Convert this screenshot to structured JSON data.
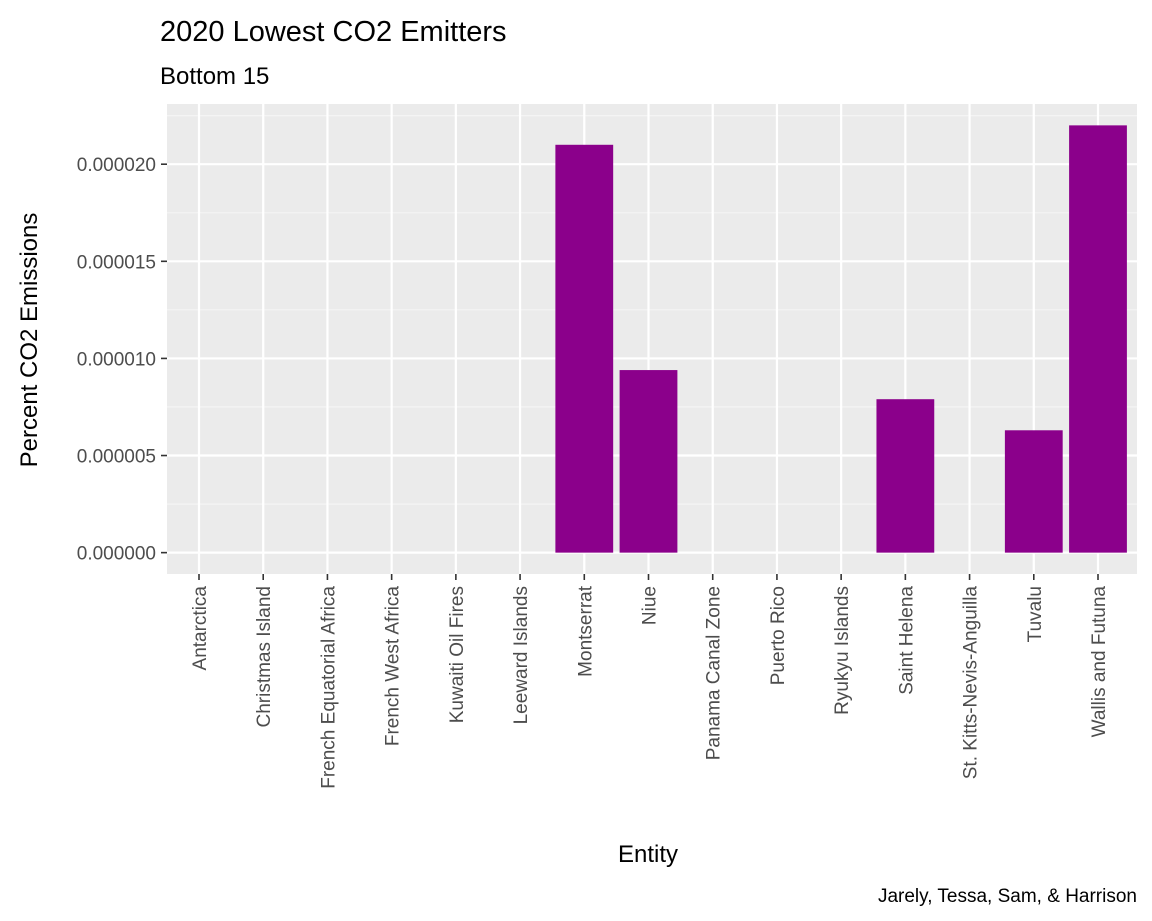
{
  "chart_data": {
    "type": "bar",
    "title": "2020 Lowest CO2 Emitters",
    "subtitle": "Bottom 15",
    "xlabel": "Entity",
    "ylabel": "Percent CO2 Emissions",
    "caption": "Jarely, Tessa, Sam, & Harrison",
    "categories": [
      "Antarctica",
      "Christmas Island",
      "French Equatorial Africa",
      "French West Africa",
      "Kuwaiti Oil Fires",
      "Leeward Islands",
      "Montserrat",
      "Niue",
      "Panama Canal Zone",
      "Puerto Rico",
      "Ryukyu Islands",
      "Saint Helena",
      "St. Kitts-Nevis-Anguilla",
      "Tuvalu",
      "Wallis and Futuna"
    ],
    "values": [
      0,
      0,
      0,
      0,
      0,
      0,
      2.1e-05,
      9.4e-06,
      0,
      0,
      0,
      7.9e-06,
      0,
      6.3e-06,
      2.2e-05
    ],
    "yticks": [
      0,
      5e-06,
      1e-05,
      1.5e-05,
      2e-05
    ],
    "ytick_labels": [
      "0.000000",
      "0.000005",
      "0.000010",
      "0.000015",
      "0.000020"
    ],
    "ylim": [
      -1.1e-06,
      2.31e-05
    ],
    "grid": true,
    "legend": "none",
    "colors": {
      "bar": "#8b008b",
      "panel": "#ebebeb",
      "grid_major": "#ffffff",
      "grid_minor": "#f5f5f5",
      "tick_text": "#4d4d4d",
      "tick_mark": "#333333"
    }
  }
}
